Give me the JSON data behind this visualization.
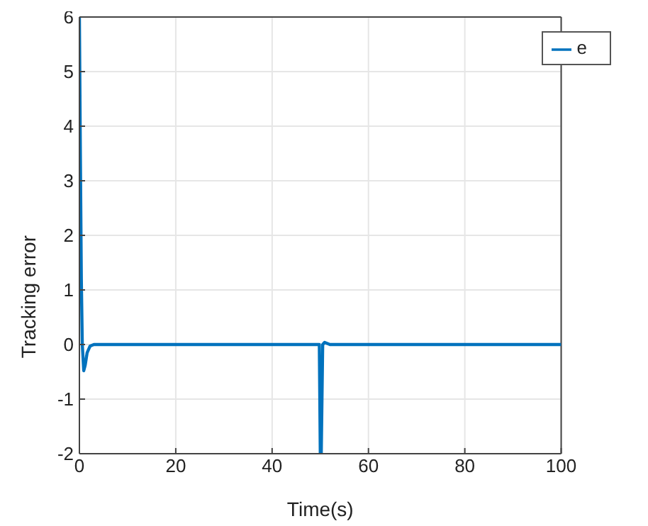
{
  "chart_data": {
    "type": "line",
    "xlabel": "Time(s)",
    "ylabel": "Tracking error",
    "x": [
      0,
      0.2,
      0.4,
      0.6,
      0.9,
      1.2,
      1.6,
      2.2,
      3,
      10,
      20,
      30,
      40,
      49.8,
      50,
      50.2,
      50.5,
      50.9,
      52,
      60,
      70,
      80,
      90,
      100
    ],
    "series": [
      {
        "name": "e",
        "color": "#0072bd",
        "values": [
          6,
          3.5,
          1.2,
          0,
          -0.48,
          -0.38,
          -0.15,
          -0.03,
          0,
          0,
          0,
          0,
          0,
          0,
          -2,
          -2,
          0,
          0.04,
          0,
          0,
          0,
          0,
          0,
          0
        ]
      }
    ],
    "xlim": [
      0,
      100
    ],
    "xticks": [
      0,
      20,
      40,
      60,
      80,
      100
    ],
    "ylim": [
      -2,
      6
    ],
    "yticks": [
      -2,
      -1,
      0,
      1,
      2,
      3,
      4,
      5,
      6
    ],
    "grid": true,
    "legend": "top right",
    "marker": "none",
    "line_style": "solid"
  }
}
